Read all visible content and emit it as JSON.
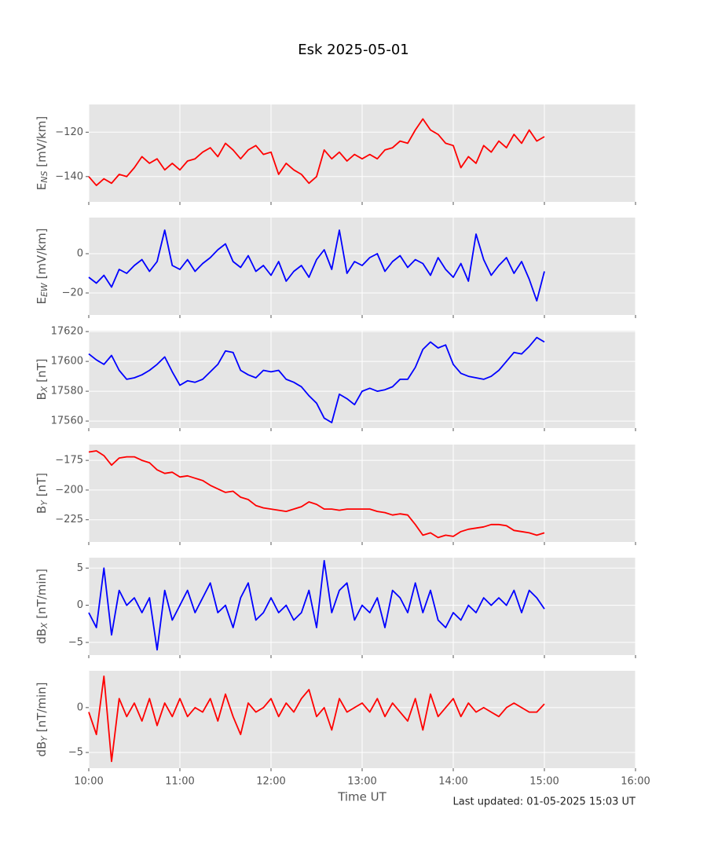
{
  "chart_data": [
    {
      "type": "line",
      "title": "Esk 2025-05-01",
      "ylabel": [
        "E",
        "NS",
        " [mV/km]"
      ],
      "color": "#ff0000",
      "grid": true,
      "xlim": [
        "10:00",
        "16:00"
      ],
      "xticks": [
        "10:00",
        "11:00",
        "12:00",
        "13:00",
        "14:00",
        "15:00",
        "16:00"
      ],
      "ylim": [
        -151.4,
        -107.5
      ],
      "yticks": [
        {
          "value": -140,
          "label": "−140"
        },
        {
          "value": -120,
          "label": "−120"
        }
      ],
      "x": [
        "10:00",
        "10:05",
        "10:10",
        "10:15",
        "10:20",
        "10:25",
        "10:30",
        "10:35",
        "10:40",
        "10:45",
        "10:50",
        "10:55",
        "11:00",
        "11:05",
        "11:10",
        "11:15",
        "11:20",
        "11:25",
        "11:30",
        "11:35",
        "11:40",
        "11:45",
        "11:50",
        "11:55",
        "12:00",
        "12:05",
        "12:10",
        "12:15",
        "12:20",
        "12:25",
        "12:30",
        "12:35",
        "12:40",
        "12:45",
        "12:50",
        "12:55",
        "13:00",
        "13:05",
        "13:10",
        "13:15",
        "13:20",
        "13:25",
        "13:30",
        "13:35",
        "13:40",
        "13:45",
        "13:50",
        "13:55",
        "14:00",
        "14:05",
        "14:10",
        "14:15",
        "14:20",
        "14:25",
        "14:30",
        "14:35",
        "14:40",
        "14:45",
        "14:50",
        "14:55",
        "15:00"
      ],
      "values": [
        -140,
        -144,
        -141,
        -143,
        -139,
        -140,
        -136,
        -131,
        -134,
        -132,
        -137,
        -134,
        -137,
        -133,
        -132,
        -129,
        -127,
        -131,
        -125,
        -128,
        -132,
        -128,
        -126,
        -130,
        -129,
        -139,
        -134,
        -137,
        -139,
        -143,
        -140,
        -128,
        -132,
        -129,
        -133,
        -130,
        -132,
        -130,
        -132,
        -128,
        -127,
        -124,
        -125,
        -119,
        -114,
        -119,
        -121,
        -125,
        -126,
        -136,
        -131,
        -134,
        -126,
        -129,
        -124,
        -127,
        -121,
        -125,
        -119,
        -124,
        -122
      ]
    },
    {
      "type": "line",
      "ylabel": [
        "E",
        "EW",
        " [mV/km]"
      ],
      "color": "#0000ff",
      "grid": true,
      "xlim": [
        "10:00",
        "16:00"
      ],
      "xticks": [
        "10:00",
        "11:00",
        "12:00",
        "13:00",
        "14:00",
        "15:00",
        "16:00"
      ],
      "ylim": [
        -31.2,
        18.4
      ],
      "yticks": [
        {
          "value": -20,
          "label": "−20"
        },
        0
      ],
      "x": [
        "10:00",
        "10:05",
        "10:10",
        "10:15",
        "10:20",
        "10:25",
        "10:30",
        "10:35",
        "10:40",
        "10:45",
        "10:50",
        "10:55",
        "11:00",
        "11:05",
        "11:10",
        "11:15",
        "11:20",
        "11:25",
        "11:30",
        "11:35",
        "11:40",
        "11:45",
        "11:50",
        "11:55",
        "12:00",
        "12:05",
        "12:10",
        "12:15",
        "12:20",
        "12:25",
        "12:30",
        "12:35",
        "12:40",
        "12:45",
        "12:50",
        "12:55",
        "13:00",
        "13:05",
        "13:10",
        "13:15",
        "13:20",
        "13:25",
        "13:30",
        "13:35",
        "13:40",
        "13:45",
        "13:50",
        "13:55",
        "14:00",
        "14:05",
        "14:10",
        "14:15",
        "14:20",
        "14:25",
        "14:30",
        "14:35",
        "14:40",
        "14:45",
        "14:50",
        "14:55",
        "15:00"
      ],
      "values": [
        -12,
        -15,
        -11,
        -17,
        -8,
        -10,
        -6,
        -3,
        -9,
        -4,
        12,
        -6,
        -8,
        -3,
        -9,
        -5,
        -2,
        2,
        5,
        -4,
        -7,
        -1,
        -9,
        -6,
        -11,
        -4,
        -14,
        -9,
        -6,
        -12,
        -3,
        2,
        -8,
        12,
        -10,
        -4,
        -6,
        -2,
        0,
        -9,
        -4,
        -1,
        -7,
        -3,
        -5,
        -11,
        -2,
        -8,
        -12,
        -5,
        -14,
        10,
        -3,
        -11,
        -6,
        -2,
        -10,
        -4,
        -13,
        -24,
        -9
      ]
    },
    {
      "type": "line",
      "ylabel": [
        "B",
        "X",
        " [nT]"
      ],
      "color": "#0000ff",
      "grid": true,
      "xlim": [
        "10:00",
        "16:00"
      ],
      "xticks": [
        "10:00",
        "11:00",
        "12:00",
        "13:00",
        "14:00",
        "15:00",
        "16:00"
      ],
      "ylim": [
        17555.3,
        17620.6
      ],
      "yticks": [
        17560,
        17580,
        17600,
        17620
      ],
      "x": [
        "10:00",
        "10:05",
        "10:10",
        "10:15",
        "10:20",
        "10:25",
        "10:30",
        "10:35",
        "10:40",
        "10:45",
        "10:50",
        "10:55",
        "11:00",
        "11:05",
        "11:10",
        "11:15",
        "11:20",
        "11:25",
        "11:30",
        "11:35",
        "11:40",
        "11:45",
        "11:50",
        "11:55",
        "12:00",
        "12:05",
        "12:10",
        "12:15",
        "12:20",
        "12:25",
        "12:30",
        "12:35",
        "12:40",
        "12:45",
        "12:50",
        "12:55",
        "13:00",
        "13:05",
        "13:10",
        "13:15",
        "13:20",
        "13:25",
        "13:30",
        "13:35",
        "13:40",
        "13:45",
        "13:50",
        "13:55",
        "14:00",
        "14:05",
        "14:10",
        "14:15",
        "14:20",
        "14:25",
        "14:30",
        "14:35",
        "14:40",
        "14:45",
        "14:50",
        "14:55",
        "15:00"
      ],
      "values": [
        17605,
        17601,
        17598,
        17604,
        17594,
        17588,
        17589,
        17591,
        17594,
        17598,
        17603,
        17593,
        17584,
        17587,
        17586,
        17588,
        17593,
        17598,
        17607,
        17606,
        17594,
        17591,
        17589,
        17594,
        17593,
        17594,
        17588,
        17586,
        17583,
        17577,
        17572,
        17562,
        17559,
        17578,
        17575,
        17571,
        17580,
        17582,
        17580,
        17581,
        17583,
        17588,
        17588,
        17596,
        17608,
        17613,
        17609,
        17611,
        17598,
        17592,
        17590,
        17589,
        17588,
        17590,
        17594,
        17600,
        17606,
        17605,
        17610,
        17616,
        17613
      ]
    },
    {
      "type": "line",
      "ylabel": [
        "B",
        "Y",
        " [nT]"
      ],
      "color": "#ff0000",
      "grid": true,
      "xlim": [
        "10:00",
        "16:00"
      ],
      "xticks": [
        "10:00",
        "11:00",
        "12:00",
        "13:00",
        "14:00",
        "15:00",
        "16:00"
      ],
      "ylim": [
        -243.7,
        -161.7
      ],
      "yticks": [
        {
          "value": -225,
          "label": "−225"
        },
        {
          "value": -200,
          "label": "−200"
        },
        {
          "value": -175,
          "label": "−175"
        }
      ],
      "x": [
        "10:00",
        "10:05",
        "10:10",
        "10:15",
        "10:20",
        "10:25",
        "10:30",
        "10:35",
        "10:40",
        "10:45",
        "10:50",
        "10:55",
        "11:00",
        "11:05",
        "11:10",
        "11:15",
        "11:20",
        "11:25",
        "11:30",
        "11:35",
        "11:40",
        "11:45",
        "11:50",
        "11:55",
        "12:00",
        "12:05",
        "12:10",
        "12:15",
        "12:20",
        "12:25",
        "12:30",
        "12:35",
        "12:40",
        "12:45",
        "12:50",
        "12:55",
        "13:00",
        "13:05",
        "13:10",
        "13:15",
        "13:20",
        "13:25",
        "13:30",
        "13:35",
        "13:40",
        "13:45",
        "13:50",
        "13:55",
        "14:00",
        "14:05",
        "14:10",
        "14:15",
        "14:20",
        "14:25",
        "14:30",
        "14:35",
        "14:40",
        "14:45",
        "14:50",
        "14:55",
        "15:00"
      ],
      "values": [
        -168,
        -167,
        -171,
        -179,
        -173,
        -172,
        -172,
        -175,
        -177,
        -183,
        -186,
        -185,
        -189,
        -188,
        -190,
        -192,
        -196,
        -199,
        -202,
        -201,
        -206,
        -208,
        -213,
        -215,
        -216,
        -217,
        -218,
        -216,
        -214,
        -210,
        -212,
        -216,
        -216,
        -217,
        -216,
        -216,
        -216,
        -216,
        -218,
        -219,
        -221,
        -220,
        -221,
        -229,
        -238,
        -236,
        -240,
        -238,
        -239,
        -235,
        -233,
        -232,
        -231,
        -229,
        -229,
        -230,
        -234,
        -235,
        -236,
        -238,
        -236
      ]
    },
    {
      "type": "line",
      "ylabel": [
        "dB",
        "X",
        " [nT/min]"
      ],
      "color": "#0000ff",
      "grid": true,
      "xlim": [
        "10:00",
        "16:00"
      ],
      "xticks": [
        "10:00",
        "11:00",
        "12:00",
        "13:00",
        "14:00",
        "15:00",
        "16:00"
      ],
      "ylim": [
        -6.7,
        6.4
      ],
      "yticks": [
        {
          "value": -5,
          "label": "−5"
        },
        0,
        5
      ],
      "x": [
        "10:00",
        "10:05",
        "10:10",
        "10:15",
        "10:20",
        "10:25",
        "10:30",
        "10:35",
        "10:40",
        "10:45",
        "10:50",
        "10:55",
        "11:00",
        "11:05",
        "11:10",
        "11:15",
        "11:20",
        "11:25",
        "11:30",
        "11:35",
        "11:40",
        "11:45",
        "11:50",
        "11:55",
        "12:00",
        "12:05",
        "12:10",
        "12:15",
        "12:20",
        "12:25",
        "12:30",
        "12:35",
        "12:40",
        "12:45",
        "12:50",
        "12:55",
        "13:00",
        "13:05",
        "13:10",
        "13:15",
        "13:20",
        "13:25",
        "13:30",
        "13:35",
        "13:40",
        "13:45",
        "13:50",
        "13:55",
        "14:00",
        "14:05",
        "14:10",
        "14:15",
        "14:20",
        "14:25",
        "14:30",
        "14:35",
        "14:40",
        "14:45",
        "14:50",
        "14:55",
        "15:00"
      ],
      "values": [
        -1,
        -3,
        5,
        -4,
        2,
        0,
        1,
        -1,
        1,
        -6,
        2,
        -2,
        0,
        2,
        -1,
        1,
        3,
        -1,
        0,
        -3,
        1,
        3,
        -2,
        -1,
        1,
        -1,
        0,
        -2,
        -1,
        2,
        -3,
        6,
        -1,
        2,
        3,
        -2,
        0,
        -1,
        1,
        -3,
        2,
        1,
        -1,
        3,
        -1,
        2,
        -2,
        -3,
        -1,
        -2,
        0,
        -1,
        1,
        0,
        1,
        0,
        2,
        -1,
        2,
        1,
        -0.5
      ]
    },
    {
      "type": "line",
      "ylabel": [
        "dB",
        "Y",
        " [nT/min]"
      ],
      "color": "#ff0000",
      "grid": true,
      "xlabel": "Time UT",
      "footnote": "Last updated: 01-05-2025 15:03 UT",
      "xlim": [
        "10:00",
        "16:00"
      ],
      "xticks": [
        "10:00",
        "11:00",
        "12:00",
        "13:00",
        "14:00",
        "15:00",
        "16:00"
      ],
      "ylim": [
        -6.75,
        4.1
      ],
      "yticks": [
        {
          "value": -5,
          "label": "−5"
        },
        0
      ],
      "x": [
        "10:00",
        "10:05",
        "10:10",
        "10:15",
        "10:20",
        "10:25",
        "10:30",
        "10:35",
        "10:40",
        "10:45",
        "10:50",
        "10:55",
        "11:00",
        "11:05",
        "11:10",
        "11:15",
        "11:20",
        "11:25",
        "11:30",
        "11:35",
        "11:40",
        "11:45",
        "11:50",
        "11:55",
        "12:00",
        "12:05",
        "12:10",
        "12:15",
        "12:20",
        "12:25",
        "12:30",
        "12:35",
        "12:40",
        "12:45",
        "12:50",
        "12:55",
        "13:00",
        "13:05",
        "13:10",
        "13:15",
        "13:20",
        "13:25",
        "13:30",
        "13:35",
        "13:40",
        "13:45",
        "13:50",
        "13:55",
        "14:00",
        "14:05",
        "14:10",
        "14:15",
        "14:20",
        "14:25",
        "14:30",
        "14:35",
        "14:40",
        "14:45",
        "14:50",
        "14:55",
        "15:00"
      ],
      "values": [
        -0.5,
        -3,
        3.5,
        -6,
        1,
        -1,
        0.5,
        -1.5,
        1,
        -2,
        0.5,
        -1,
        1,
        -1,
        0,
        -0.5,
        1,
        -1.5,
        1.5,
        -1,
        -3,
        0.5,
        -0.5,
        0,
        1,
        -1,
        0.5,
        -0.5,
        1,
        2,
        -1,
        0,
        -2.5,
        1,
        -0.5,
        0,
        0.5,
        -0.5,
        1,
        -1,
        0.5,
        -0.5,
        -1.5,
        1,
        -2.5,
        1.5,
        -1,
        0,
        1,
        -1,
        0.5,
        -0.5,
        0,
        -0.5,
        -1,
        0,
        0.5,
        0,
        -0.5,
        -0.5,
        0.4
      ]
    }
  ]
}
